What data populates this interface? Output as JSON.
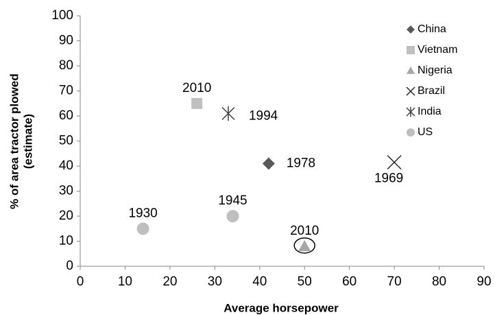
{
  "chart_data": {
    "type": "scatter",
    "xlabel": "Average horsepower",
    "ylabel": [
      "% of area tractor plowed",
      "(estimate)"
    ],
    "xlim": [
      0,
      90
    ],
    "xticks": [
      0,
      10,
      20,
      30,
      40,
      50,
      60,
      70,
      80,
      90
    ],
    "ylim": [
      0,
      100
    ],
    "yticks": [
      0,
      10,
      20,
      30,
      40,
      50,
      60,
      70,
      80,
      90,
      100
    ],
    "grid": false,
    "legend": "upper right",
    "series": [
      {
        "name": "China",
        "marker": "diamond",
        "color": "#595959",
        "x": [
          42
        ],
        "values": [
          41
        ],
        "point_labels": [
          "1978"
        ]
      },
      {
        "name": "Vietnam",
        "marker": "square",
        "color": "#bfbfbf",
        "x": [
          26
        ],
        "values": [
          65
        ],
        "point_labels": [
          "2010"
        ]
      },
      {
        "name": "Nigeria",
        "marker": "triangle",
        "color": "#a6a6a6",
        "x": [
          50
        ],
        "values": [
          8
        ],
        "point_labels": [
          "2010"
        ],
        "circled": true
      },
      {
        "name": "Brazil",
        "marker": "x",
        "color": "#262626",
        "x": [
          70
        ],
        "values": [
          41.5
        ],
        "point_labels": [
          "1969"
        ]
      },
      {
        "name": "India",
        "marker": "asterisk",
        "color": "#404040",
        "x": [
          33
        ],
        "values": [
          61
        ],
        "point_labels": [
          "1994"
        ]
      },
      {
        "name": "US",
        "marker": "circle",
        "color": "#bfbfbf",
        "x": [
          14,
          34
        ],
        "values": [
          15,
          20
        ],
        "point_labels": [
          "1930",
          "1945"
        ]
      }
    ]
  }
}
